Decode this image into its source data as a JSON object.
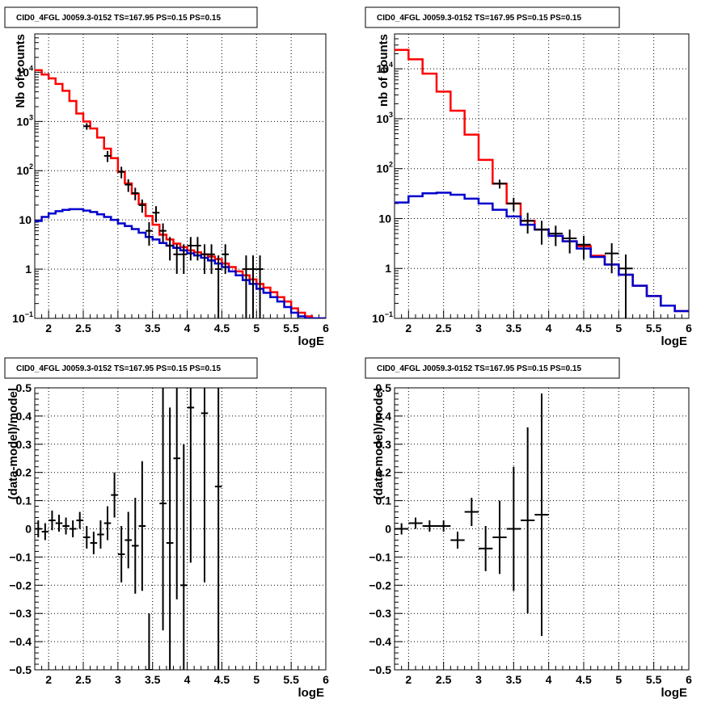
{
  "colors": {
    "data": "#000000",
    "total_model": "#ff0000",
    "background_model": "#0000cc",
    "grid": "#000000"
  },
  "chart_data": [
    {
      "type": "line",
      "title": "CID0_4FGL J0059.3-0152 TS=167.95 PS=0.15 PS=0.15",
      "xlabel": "logE",
      "ylabel": "Nb of counts",
      "xlim": [
        1.8,
        6.0
      ],
      "ylim": [
        0.1,
        60000
      ],
      "yscale": "log",
      "grid": true,
      "xticks": [
        "2",
        "2.5",
        "3",
        "3.5",
        "4",
        "4.5",
        "5",
        "5.5",
        "6"
      ],
      "yticks": [
        {
          "v": 0.1,
          "b": "10",
          "e": "−1"
        },
        {
          "v": 1,
          "b": "1",
          "e": ""
        },
        {
          "v": 10,
          "b": "10",
          "e": ""
        },
        {
          "v": 100,
          "b": "10",
          "e": "2"
        },
        {
          "v": 1000,
          "b": "10",
          "e": "3"
        },
        {
          "v": 10000,
          "b": "10",
          "e": "4"
        }
      ],
      "series": [
        {
          "kind": "step",
          "color": "#ff0000",
          "x_edges": [
            1.8,
            1.9,
            2.0,
            2.1,
            2.2,
            2.3,
            2.4,
            2.5,
            2.6,
            2.7,
            2.8,
            2.9,
            3.0,
            3.1,
            3.2,
            3.3,
            3.4,
            3.5,
            3.6,
            3.7,
            3.8,
            3.9,
            4.0,
            4.1,
            4.2,
            4.3,
            4.4,
            4.5,
            4.6,
            4.7,
            4.8,
            4.9,
            5.0,
            5.1,
            5.2,
            5.3,
            5.4,
            5.5,
            5.6,
            5.7,
            5.8,
            5.9,
            6.0
          ],
          "values": [
            11000,
            9000,
            7500,
            5800,
            4200,
            2600,
            1450,
            1000,
            720,
            470,
            280,
            180,
            95,
            55,
            34,
            21,
            12,
            8,
            5,
            4,
            3.3,
            2.8,
            2.4,
            2.2,
            2.0,
            1.8,
            1.6,
            1.3,
            1.1,
            0.9,
            0.75,
            0.62,
            0.5,
            0.42,
            0.34,
            0.27,
            0.22,
            0.16,
            0.13,
            0.11,
            0.1,
            0.1
          ]
        },
        {
          "kind": "step",
          "color": "#0000cc",
          "x_edges": [
            1.8,
            1.9,
            2.0,
            2.1,
            2.2,
            2.3,
            2.4,
            2.5,
            2.6,
            2.7,
            2.8,
            2.9,
            3.0,
            3.1,
            3.2,
            3.3,
            3.4,
            3.5,
            3.6,
            3.7,
            3.8,
            3.9,
            4.0,
            4.1,
            4.2,
            4.3,
            4.4,
            4.5,
            4.6,
            4.7,
            4.8,
            4.9,
            5.0,
            5.1,
            5.2,
            5.3,
            5.4,
            5.5,
            5.6,
            5.7,
            5.8,
            5.9,
            6.0
          ],
          "values": [
            9.5,
            11.5,
            13.5,
            15,
            16,
            16.5,
            16.5,
            15.5,
            14.5,
            13,
            11.5,
            10,
            8.5,
            7.5,
            6.5,
            5.5,
            4.5,
            4,
            3.4,
            3,
            2.7,
            2.4,
            2.1,
            1.9,
            1.7,
            1.5,
            1.3,
            1.1,
            0.9,
            0.75,
            0.6,
            0.5,
            0.4,
            0.33,
            0.27,
            0.22,
            0.17,
            0.13,
            0.11,
            0.1,
            0.1,
            0.1
          ]
        },
        {
          "kind": "errorbar",
          "color": "#000000",
          "points": [
            [
              2.55,
              800,
              0.05,
              120,
              120
            ],
            [
              2.85,
              200,
              0.05,
              50,
              50
            ],
            [
              3.05,
              95,
              0.05,
              25,
              25
            ],
            [
              3.15,
              52,
              0.05,
              15,
              15
            ],
            [
              3.25,
              35,
              0.05,
              10,
              10
            ],
            [
              3.35,
              20,
              0.05,
              6,
              6
            ],
            [
              3.45,
              6,
              0.05,
              3,
              3
            ],
            [
              3.55,
              14,
              0.05,
              5,
              5
            ],
            [
              3.65,
              6,
              0.05,
              2.5,
              2.5
            ],
            [
              3.75,
              3,
              0.05,
              1.5,
              1.5
            ],
            [
              3.85,
              2,
              0.05,
              1.2,
              1.2
            ],
            [
              3.95,
              2,
              0.05,
              1.2,
              1.2
            ],
            [
              4.05,
              3,
              0.05,
              1.5,
              1.5
            ],
            [
              4.15,
              3,
              0.05,
              1.5,
              1.5
            ],
            [
              4.25,
              2,
              0.05,
              1.2,
              1.2
            ],
            [
              4.35,
              2,
              0.05,
              1.2,
              1.2
            ],
            [
              4.45,
              1,
              0.05,
              0.9,
              0.9
            ],
            [
              4.55,
              2,
              0.05,
              1.2,
              1.2
            ],
            [
              4.85,
              1,
              0.05,
              0.9,
              0.9
            ],
            [
              4.95,
              1,
              0.05,
              0.9,
              0.9
            ],
            [
              5.05,
              1,
              0.05,
              0.9,
              0.9
            ]
          ]
        }
      ]
    },
    {
      "type": "line",
      "title": "CID0_4FGL J0059.3-0152 TS=167.95 PS=0.15 PS=0.15",
      "xlabel": "logE",
      "ylabel": "nb of counts",
      "xlim": [
        1.8,
        6.0
      ],
      "ylim": [
        0.1,
        50000
      ],
      "yscale": "log",
      "grid": true,
      "xticks": [
        "2",
        "2.5",
        "3",
        "3.5",
        "4",
        "4.5",
        "5",
        "5.5",
        "6"
      ],
      "yticks": [
        {
          "v": 0.1,
          "b": "10",
          "e": "−1"
        },
        {
          "v": 1,
          "b": "1",
          "e": ""
        },
        {
          "v": 10,
          "b": "10",
          "e": ""
        },
        {
          "v": 100,
          "b": "10",
          "e": "2"
        },
        {
          "v": 1000,
          "b": "10",
          "e": "3"
        },
        {
          "v": 10000,
          "b": "10",
          "e": "4"
        }
      ],
      "series": [
        {
          "kind": "step",
          "color": "#ff0000",
          "x_edges": [
            1.8,
            2.0,
            2.2,
            2.4,
            2.6,
            2.8,
            3.0,
            3.2,
            3.4,
            3.6,
            3.8,
            4.0,
            4.2,
            4.4,
            4.6,
            4.8,
            5.0,
            5.2,
            5.4,
            5.6,
            5.8,
            6.0
          ],
          "values": [
            24000,
            15500,
            8000,
            3500,
            1450,
            480,
            150,
            50,
            20,
            9,
            6,
            4.5,
            3.5,
            2.8,
            1.8,
            1.2,
            0.75,
            0.45,
            0.28,
            0.18,
            0.14
          ]
        },
        {
          "kind": "step",
          "color": "#0000cc",
          "x_edges": [
            1.8,
            2.0,
            2.2,
            2.4,
            2.6,
            2.8,
            3.0,
            3.2,
            3.4,
            3.6,
            3.8,
            4.0,
            4.2,
            4.4,
            4.6,
            4.8,
            5.0,
            5.2,
            5.4,
            5.6,
            5.8,
            6.0
          ],
          "values": [
            21,
            28,
            32,
            33,
            30,
            25,
            20,
            15,
            11,
            7.5,
            6,
            4.5,
            3.5,
            2.5,
            1.7,
            1.2,
            0.75,
            0.45,
            0.28,
            0.18,
            0.14
          ]
        },
        {
          "kind": "errorbar",
          "color": "#000000",
          "points": [
            [
              3.3,
              50,
              0.1,
              10,
              10
            ],
            [
              3.5,
              20,
              0.1,
              6,
              6
            ],
            [
              3.7,
              9,
              0.1,
              4,
              4
            ],
            [
              3.9,
              6,
              0.1,
              3,
              3
            ],
            [
              4.1,
              5,
              0.1,
              2.2,
              2.2
            ],
            [
              4.3,
              4,
              0.1,
              2,
              2
            ],
            [
              4.5,
              3,
              0.1,
              1.5,
              1.5
            ],
            [
              4.9,
              2,
              0.1,
              1.2,
              1.2
            ],
            [
              5.1,
              1,
              0.1,
              0.9,
              0.9
            ]
          ]
        }
      ]
    },
    {
      "type": "scatter",
      "title": "CID0_4FGL J0059.3-0152 TS=167.95 PS=0.15 PS=0.15",
      "xlabel": "logE",
      "ylabel": "(data-model)/model",
      "xlim": [
        1.8,
        6.0
      ],
      "ylim": [
        -0.5,
        0.5
      ],
      "yscale": "linear",
      "grid": true,
      "xticks": [
        "2",
        "2.5",
        "3",
        "3.5",
        "4",
        "4.5",
        "5",
        "5.5",
        "6"
      ],
      "yticks": [
        {
          "v": -0.5,
          "b": "−0.5"
        },
        {
          "v": -0.4,
          "b": "−0.4"
        },
        {
          "v": -0.3,
          "b": "−0.3"
        },
        {
          "v": -0.2,
          "b": "−0.2"
        },
        {
          "v": -0.1,
          "b": "−0.1"
        },
        {
          "v": 0,
          "b": "0"
        },
        {
          "v": 0.1,
          "b": "0.1"
        },
        {
          "v": 0.2,
          "b": "0.2"
        },
        {
          "v": 0.3,
          "b": "0.3"
        },
        {
          "v": 0.4,
          "b": "0.4"
        },
        {
          "v": 0.5,
          "b": "0.5"
        }
      ],
      "series": [
        {
          "kind": "errorbar",
          "color": "#000000",
          "points": [
            [
              1.85,
              0.0,
              0.05,
              0.03,
              0.03
            ],
            [
              1.95,
              -0.01,
              0.05,
              0.03,
              0.03
            ],
            [
              2.05,
              0.03,
              0.05,
              0.035,
              0.035
            ],
            [
              2.15,
              0.02,
              0.05,
              0.03,
              0.03
            ],
            [
              2.25,
              0.01,
              0.05,
              0.03,
              0.03
            ],
            [
              2.35,
              0.0,
              0.05,
              0.03,
              0.03
            ],
            [
              2.45,
              0.03,
              0.05,
              0.03,
              0.03
            ],
            [
              2.55,
              -0.03,
              0.05,
              0.04,
              0.04
            ],
            [
              2.65,
              -0.05,
              0.05,
              0.04,
              0.04
            ],
            [
              2.75,
              -0.02,
              0.05,
              0.05,
              0.05
            ],
            [
              2.85,
              0.02,
              0.05,
              0.06,
              0.06
            ],
            [
              2.95,
              0.12,
              0.05,
              0.08,
              0.08
            ],
            [
              3.05,
              -0.09,
              0.05,
              0.1,
              0.1
            ],
            [
              3.15,
              -0.04,
              0.05,
              0.1,
              0.1
            ],
            [
              3.25,
              -0.06,
              0.05,
              0.17,
              0.17
            ],
            [
              3.35,
              0.01,
              0.05,
              0.23,
              0.23
            ],
            [
              3.45,
              -0.5,
              0.05,
              0.2,
              0.2
            ],
            [
              3.65,
              0.09,
              0.05,
              0.45,
              0.45
            ],
            [
              3.75,
              -0.05,
              0.05,
              0.48,
              0.48
            ],
            [
              3.85,
              0.25,
              0.05,
              0.5,
              0.5
            ],
            [
              3.95,
              -0.2,
              0.05,
              0.5,
              0.5
            ],
            [
              4.05,
              0.43,
              0.05,
              0.55,
              0.55
            ],
            [
              4.25,
              0.41,
              0.05,
              0.6,
              0.6
            ],
            [
              4.45,
              0.15,
              0.05,
              0.7,
              0.7
            ]
          ]
        }
      ]
    },
    {
      "type": "scatter",
      "title": "CID0_4FGL J0059.3-0152 TS=167.95 PS=0.15 PS=0.15",
      "xlabel": "logE",
      "ylabel": "(data-model)/model",
      "xlim": [
        1.8,
        6.0
      ],
      "ylim": [
        -0.5,
        0.5
      ],
      "yscale": "linear",
      "grid": true,
      "xticks": [
        "2",
        "2.5",
        "3",
        "3.5",
        "4",
        "4.5",
        "5",
        "5.5",
        "6"
      ],
      "yticks": [
        {
          "v": -0.5,
          "b": "−0.5"
        },
        {
          "v": -0.4,
          "b": "−0.4"
        },
        {
          "v": -0.3,
          "b": "−0.3"
        },
        {
          "v": -0.2,
          "b": "−0.2"
        },
        {
          "v": -0.1,
          "b": "−0.1"
        },
        {
          "v": 0,
          "b": "0"
        },
        {
          "v": 0.1,
          "b": "0.1"
        },
        {
          "v": 0.2,
          "b": "0.2"
        },
        {
          "v": 0.3,
          "b": "0.3"
        },
        {
          "v": 0.4,
          "b": "0.4"
        },
        {
          "v": 0.5,
          "b": "0.5"
        }
      ],
      "series": [
        {
          "kind": "errorbar",
          "color": "#000000",
          "points": [
            [
              1.9,
              0.0,
              0.1,
              0.02,
              0.02
            ],
            [
              2.1,
              0.02,
              0.1,
              0.02,
              0.02
            ],
            [
              2.3,
              0.01,
              0.1,
              0.02,
              0.02
            ],
            [
              2.5,
              0.01,
              0.1,
              0.02,
              0.02
            ],
            [
              2.7,
              -0.04,
              0.1,
              0.03,
              0.03
            ],
            [
              2.9,
              0.06,
              0.1,
              0.05,
              0.05
            ],
            [
              3.1,
              -0.07,
              0.1,
              0.08,
              0.08
            ],
            [
              3.3,
              -0.03,
              0.1,
              0.13,
              0.13
            ],
            [
              3.5,
              0.0,
              0.1,
              0.22,
              0.22
            ],
            [
              3.7,
              0.03,
              0.1,
              0.33,
              0.33
            ],
            [
              3.9,
              0.05,
              0.1,
              0.43,
              0.43
            ]
          ]
        }
      ]
    }
  ]
}
